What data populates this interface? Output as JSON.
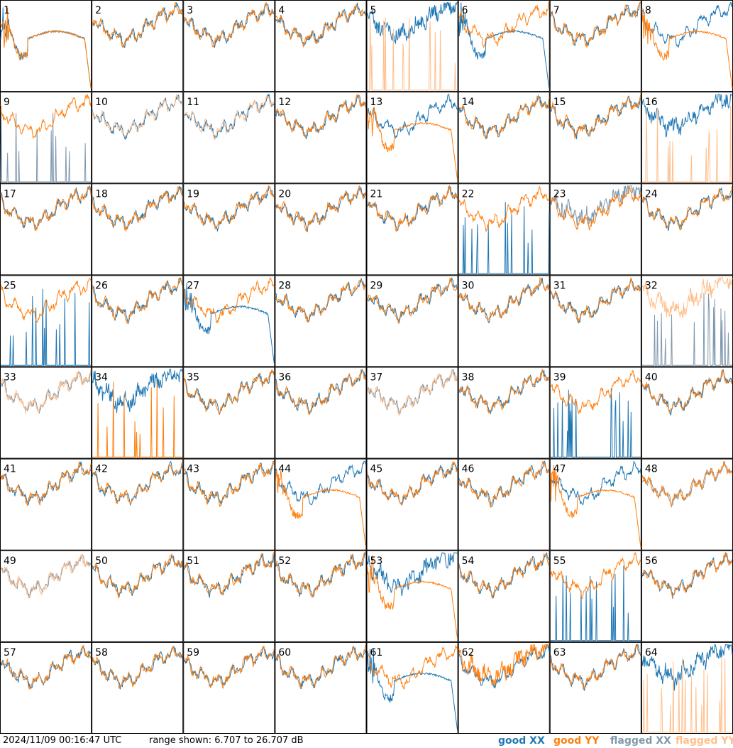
{
  "footer": {
    "timestamp": "2024/11/09 00:16:47 UTC",
    "range_text": "range shown: 6.707 to 26.707 dB"
  },
  "chart_data": {
    "type": "line",
    "grid": {
      "rows": 8,
      "cols": 8
    },
    "ylim": [
      6.707,
      26.707
    ],
    "legend": {
      "placement": "bottom-right",
      "entries": [
        {
          "label": "good XX",
          "color": "#1f77b4"
        },
        {
          "label": "good YY",
          "color": "#ff7f0e"
        },
        {
          "label": "flagged XX",
          "color": "#7f98ad"
        },
        {
          "label": "flagged YY",
          "color": "#ffbf8c"
        }
      ]
    },
    "panels": [
      {
        "id": "1",
        "xx": "dip",
        "yy": "dip",
        "xx_state": "good",
        "yy_state": "good"
      },
      {
        "id": "2",
        "xx": "normal",
        "yy": "normal",
        "xx_state": "good",
        "yy_state": "good"
      },
      {
        "id": "3",
        "xx": "normal",
        "yy": "normal",
        "xx_state": "good",
        "yy_state": "good"
      },
      {
        "id": "4",
        "xx": "normal",
        "yy": "normal",
        "xx_state": "good",
        "yy_state": "good"
      },
      {
        "id": "5",
        "xx": "noisy",
        "yy": "spikes",
        "xx_state": "good",
        "yy_state": "flagged"
      },
      {
        "id": "6",
        "xx": "dip",
        "yy": "normal",
        "xx_state": "good",
        "yy_state": "good"
      },
      {
        "id": "7",
        "xx": "normal",
        "yy": "normal",
        "xx_state": "good",
        "yy_state": "good"
      },
      {
        "id": "8",
        "xx": "normal",
        "yy": "dip",
        "xx_state": "good",
        "yy_state": "good"
      },
      {
        "id": "9",
        "xx": "spikes",
        "yy": "normal",
        "xx_state": "flagged",
        "yy_state": "good"
      },
      {
        "id": "10",
        "xx": "normal",
        "yy": "normal",
        "xx_state": "good",
        "yy_state": "flagged"
      },
      {
        "id": "11",
        "xx": "normal",
        "yy": "normal",
        "xx_state": "good",
        "yy_state": "flagged"
      },
      {
        "id": "12",
        "xx": "normal",
        "yy": "normal",
        "xx_state": "good",
        "yy_state": "good"
      },
      {
        "id": "13",
        "xx": "normal",
        "yy": "dip",
        "xx_state": "good",
        "yy_state": "good"
      },
      {
        "id": "14",
        "xx": "normal",
        "yy": "normal",
        "xx_state": "good",
        "yy_state": "good"
      },
      {
        "id": "15",
        "xx": "normal",
        "yy": "normal",
        "xx_state": "good",
        "yy_state": "good"
      },
      {
        "id": "16",
        "xx": "noisy",
        "yy": "spikes",
        "xx_state": "good",
        "yy_state": "flagged"
      },
      {
        "id": "17",
        "xx": "normal",
        "yy": "normal",
        "xx_state": "good",
        "yy_state": "good"
      },
      {
        "id": "18",
        "xx": "normal",
        "yy": "normal",
        "xx_state": "good",
        "yy_state": "good"
      },
      {
        "id": "19",
        "xx": "normal",
        "yy": "normal",
        "xx_state": "good",
        "yy_state": "good"
      },
      {
        "id": "20",
        "xx": "normal",
        "yy": "normal",
        "xx_state": "good",
        "yy_state": "good"
      },
      {
        "id": "21",
        "xx": "normal",
        "yy": "normal",
        "xx_state": "good",
        "yy_state": "good"
      },
      {
        "id": "22",
        "xx": "spikes",
        "yy": "normal",
        "xx_state": "good",
        "yy_state": "good"
      },
      {
        "id": "23",
        "xx": "noisy",
        "yy": "normal",
        "xx_state": "flagged",
        "yy_state": "good"
      },
      {
        "id": "24",
        "xx": "normal",
        "yy": "normal",
        "xx_state": "good",
        "yy_state": "good"
      },
      {
        "id": "25",
        "xx": "spikes",
        "yy": "normal",
        "xx_state": "good",
        "yy_state": "good"
      },
      {
        "id": "26",
        "xx": "normal",
        "yy": "normal",
        "xx_state": "good",
        "yy_state": "good"
      },
      {
        "id": "27",
        "xx": "dip",
        "yy": "normal",
        "xx_state": "good",
        "yy_state": "good"
      },
      {
        "id": "28",
        "xx": "normal",
        "yy": "normal",
        "xx_state": "good",
        "yy_state": "good"
      },
      {
        "id": "29",
        "xx": "normal",
        "yy": "normal",
        "xx_state": "good",
        "yy_state": "good"
      },
      {
        "id": "30",
        "xx": "normal",
        "yy": "normal",
        "xx_state": "good",
        "yy_state": "good"
      },
      {
        "id": "31",
        "xx": "normal",
        "yy": "normal",
        "xx_state": "good",
        "yy_state": "good"
      },
      {
        "id": "32",
        "xx": "spikes",
        "yy": "noisy",
        "xx_state": "flagged",
        "yy_state": "flagged"
      },
      {
        "id": "33",
        "xx": "normal",
        "yy": "normal",
        "xx_state": "flagged",
        "yy_state": "flagged"
      },
      {
        "id": "34",
        "xx": "noisy",
        "yy": "spikes",
        "xx_state": "good",
        "yy_state": "good"
      },
      {
        "id": "35",
        "xx": "normal",
        "yy": "normal",
        "xx_state": "good",
        "yy_state": "good"
      },
      {
        "id": "36",
        "xx": "normal",
        "yy": "normal",
        "xx_state": "good",
        "yy_state": "good"
      },
      {
        "id": "37",
        "xx": "normal",
        "yy": "normal",
        "xx_state": "flagged",
        "yy_state": "flagged"
      },
      {
        "id": "38",
        "xx": "normal",
        "yy": "normal",
        "xx_state": "good",
        "yy_state": "good"
      },
      {
        "id": "39",
        "xx": "spikes",
        "yy": "normal",
        "xx_state": "good",
        "yy_state": "good"
      },
      {
        "id": "40",
        "xx": "normal",
        "yy": "normal",
        "xx_state": "good",
        "yy_state": "good"
      },
      {
        "id": "41",
        "xx": "normal",
        "yy": "normal",
        "xx_state": "good",
        "yy_state": "good"
      },
      {
        "id": "42",
        "xx": "normal",
        "yy": "normal",
        "xx_state": "good",
        "yy_state": "good"
      },
      {
        "id": "43",
        "xx": "normal",
        "yy": "normal",
        "xx_state": "good",
        "yy_state": "good"
      },
      {
        "id": "44",
        "xx": "normal",
        "yy": "dip",
        "xx_state": "good",
        "yy_state": "good"
      },
      {
        "id": "45",
        "xx": "normal",
        "yy": "normal",
        "xx_state": "good",
        "yy_state": "good"
      },
      {
        "id": "46",
        "xx": "normal",
        "yy": "normal",
        "xx_state": "good",
        "yy_state": "good"
      },
      {
        "id": "47",
        "xx": "normal",
        "yy": "dip",
        "xx_state": "good",
        "yy_state": "good"
      },
      {
        "id": "48",
        "xx": "normal",
        "yy": "normal",
        "xx_state": "flagged",
        "yy_state": "good"
      },
      {
        "id": "49",
        "xx": "normal",
        "yy": "normal",
        "xx_state": "flagged",
        "yy_state": "flagged"
      },
      {
        "id": "50",
        "xx": "normal",
        "yy": "normal",
        "xx_state": "good",
        "yy_state": "good"
      },
      {
        "id": "51",
        "xx": "normal",
        "yy": "normal",
        "xx_state": "good",
        "yy_state": "good"
      },
      {
        "id": "52",
        "xx": "normal",
        "yy": "normal",
        "xx_state": "good",
        "yy_state": "good"
      },
      {
        "id": "53",
        "xx": "noisy",
        "yy": "dip",
        "xx_state": "good",
        "yy_state": "good"
      },
      {
        "id": "54",
        "xx": "normal",
        "yy": "normal",
        "xx_state": "good",
        "yy_state": "good"
      },
      {
        "id": "55",
        "xx": "spikes",
        "yy": "normal",
        "xx_state": "good",
        "yy_state": "good"
      },
      {
        "id": "56",
        "xx": "normal",
        "yy": "normal",
        "xx_state": "good",
        "yy_state": "good"
      },
      {
        "id": "57",
        "xx": "normal",
        "yy": "normal",
        "xx_state": "good",
        "yy_state": "good"
      },
      {
        "id": "58",
        "xx": "normal",
        "yy": "normal",
        "xx_state": "good",
        "yy_state": "good"
      },
      {
        "id": "59",
        "xx": "normal",
        "yy": "normal",
        "xx_state": "good",
        "yy_state": "good"
      },
      {
        "id": "60",
        "xx": "normal",
        "yy": "normal",
        "xx_state": "good",
        "yy_state": "good"
      },
      {
        "id": "61",
        "xx": "dip",
        "yy": "normal",
        "xx_state": "good",
        "yy_state": "good"
      },
      {
        "id": "62",
        "xx": "normal",
        "yy": "noisy",
        "xx_state": "good",
        "yy_state": "good"
      },
      {
        "id": "63",
        "xx": "normal",
        "yy": "normal",
        "xx_state": "good",
        "yy_state": "good"
      },
      {
        "id": "64",
        "xx": "noisy",
        "yy": "spikes",
        "xx_state": "good",
        "yy_state": "flagged"
      }
    ]
  }
}
